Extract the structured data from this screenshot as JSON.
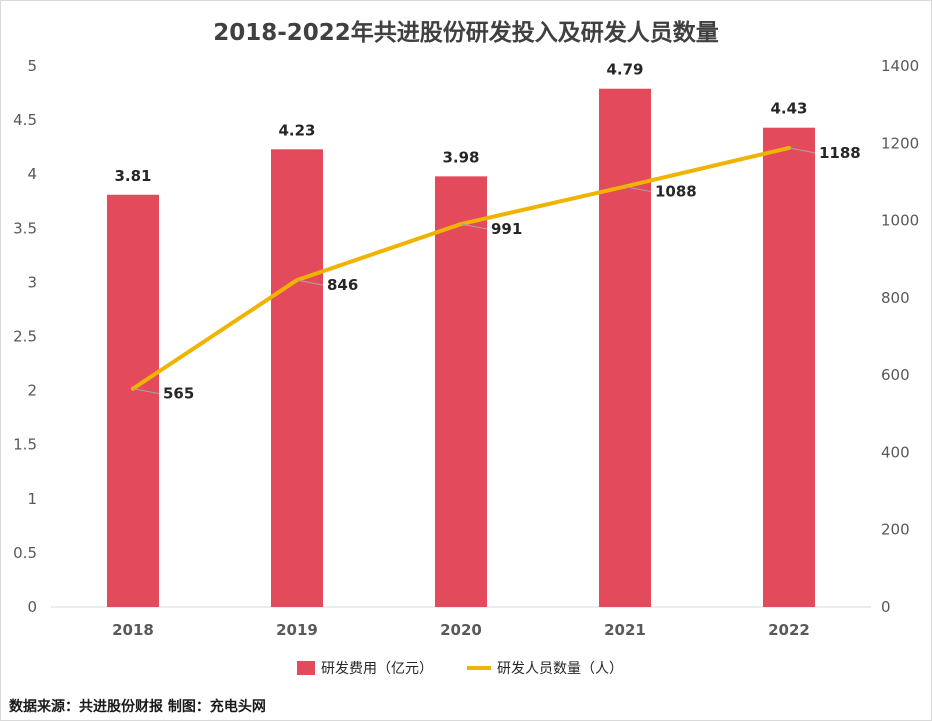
{
  "title": "2018-2022年共进股份研发投入及研发人员数量",
  "source": "数据来源：共进股份财报  制图：充电头网",
  "colors": {
    "bar": "#e34a5c",
    "line": "#f0b400"
  },
  "chart_data": {
    "type": "bar+line",
    "categories": [
      "2018",
      "2019",
      "2020",
      "2021",
      "2022"
    ],
    "series": [
      {
        "name": "研发费用（亿元）",
        "type": "bar",
        "axis": "left",
        "values": [
          3.81,
          4.23,
          3.98,
          4.79,
          4.43
        ]
      },
      {
        "name": "研发人员数量（人）",
        "type": "line",
        "axis": "right",
        "values": [
          565,
          846,
          991,
          1088,
          1188
        ]
      }
    ],
    "y_left": {
      "min": 0,
      "max": 5,
      "ticks": [
        "0",
        "0.5",
        "1",
        "1.5",
        "2",
        "2.5",
        "3",
        "3.5",
        "4",
        "4.5",
        "5"
      ]
    },
    "y_right": {
      "min": 0,
      "max": 1400,
      "ticks": [
        "0",
        "200",
        "400",
        "600",
        "800",
        "1000",
        "1200",
        "1400"
      ]
    },
    "bar_labels": [
      "3.81",
      "4.23",
      "3.98",
      "4.79",
      "4.43"
    ],
    "line_labels": [
      "565",
      "846",
      "991",
      "1088",
      "1188"
    ],
    "grid": false,
    "legend_position": "bottom"
  }
}
